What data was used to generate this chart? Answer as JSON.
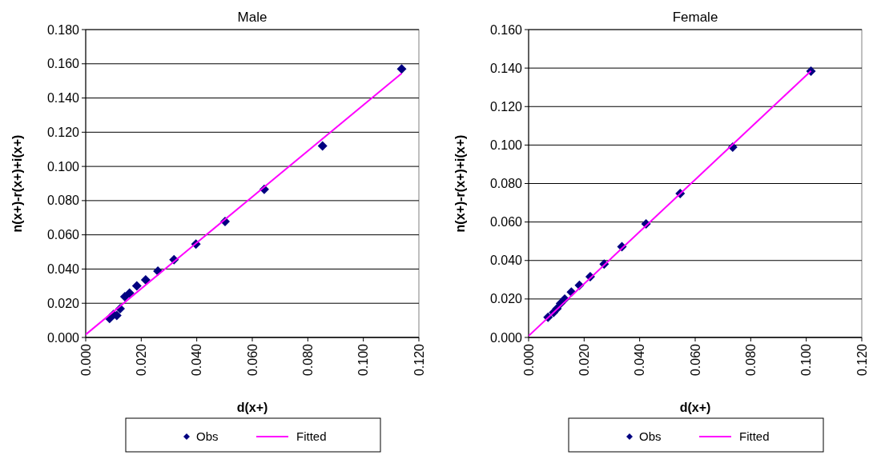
{
  "chart_data": [
    {
      "type": "scatter",
      "title": "Male",
      "xlabel": "d(x+)",
      "ylabel": "n(x+)-r(x+)+i(x+)",
      "xlim": [
        0,
        0.12
      ],
      "xticks": [
        {
          "value": 0,
          "label": "0.000"
        },
        {
          "value": 0.02,
          "label": "0.020"
        },
        {
          "value": 0.04,
          "label": "0.040"
        },
        {
          "value": 0.06,
          "label": "0.060"
        },
        {
          "value": 0.08,
          "label": "0.080"
        },
        {
          "value": 0.1,
          "label": "0.100"
        },
        {
          "value": 0.12,
          "label": "0.120"
        }
      ],
      "ylim": [
        0,
        0.18
      ],
      "yticks": [
        {
          "value": 0,
          "label": "0.000"
        },
        {
          "value": 0.02,
          "label": "0.020"
        },
        {
          "value": 0.04,
          "label": "0.040"
        },
        {
          "value": 0.06,
          "label": "0.060"
        },
        {
          "value": 0.08,
          "label": "0.080"
        },
        {
          "value": 0.1,
          "label": "0.100"
        },
        {
          "value": 0.12,
          "label": "0.120"
        },
        {
          "value": 0.14,
          "label": "0.140"
        },
        {
          "value": 0.16,
          "label": "0.160"
        },
        {
          "value": 0.18,
          "label": "0.180"
        }
      ],
      "grid": "y",
      "legend": "bottom",
      "series": [
        {
          "name": "Obs",
          "type": "scatter",
          "marker": "diamond",
          "color": "#000080",
          "x": [
            0.0086,
            0.01,
            0.0112,
            0.0124,
            0.0141,
            0.0158,
            0.0184,
            0.0216,
            0.026,
            0.0318,
            0.0397,
            0.0502,
            0.0643,
            0.0853,
            0.1138
          ],
          "values": [
            0.0111,
            0.0134,
            0.0129,
            0.0168,
            0.0238,
            0.0259,
            0.0301,
            0.0337,
            0.0388,
            0.0455,
            0.0546,
            0.0678,
            0.0866,
            0.112,
            0.157
          ]
        },
        {
          "name": "Fitted",
          "type": "line",
          "marker": "none",
          "color": "#ff00ff",
          "x": [
            0,
            0.1138
          ],
          "values": [
            0.0017,
            0.1544
          ]
        }
      ]
    },
    {
      "type": "scatter",
      "title": "Female",
      "xlabel": "d(x+)",
      "ylabel": "n(x+)-r(x+)+i(x+)",
      "xlim": [
        0,
        0.12
      ],
      "xticks": [
        {
          "value": 0,
          "label": "0.000"
        },
        {
          "value": 0.02,
          "label": "0.020"
        },
        {
          "value": 0.04,
          "label": "0.040"
        },
        {
          "value": 0.06,
          "label": "0.060"
        },
        {
          "value": 0.08,
          "label": "0.080"
        },
        {
          "value": 0.1,
          "label": "0.100"
        },
        {
          "value": 0.12,
          "label": "0.120"
        }
      ],
      "ylim": [
        0,
        0.16
      ],
      "yticks": [
        {
          "value": 0,
          "label": "0.000"
        },
        {
          "value": 0.02,
          "label": "0.020"
        },
        {
          "value": 0.04,
          "label": "0.040"
        },
        {
          "value": 0.06,
          "label": "0.060"
        },
        {
          "value": 0.08,
          "label": "0.080"
        },
        {
          "value": 0.1,
          "label": "0.100"
        },
        {
          "value": 0.12,
          "label": "0.120"
        },
        {
          "value": 0.14,
          "label": "0.140"
        },
        {
          "value": 0.16,
          "label": "0.160"
        }
      ],
      "grid": "y",
      "legend": "bottom",
      "series": [
        {
          "name": "Obs",
          "type": "scatter",
          "marker": "diamond",
          "color": "#000080",
          "x": [
            0.007,
            0.009,
            0.0102,
            0.0115,
            0.013,
            0.0154,
            0.0183,
            0.0222,
            0.0272,
            0.0336,
            0.0423,
            0.0546,
            0.0735,
            0.1017
          ],
          "values": [
            0.0105,
            0.013,
            0.015,
            0.0177,
            0.02,
            0.0236,
            0.0271,
            0.0316,
            0.0381,
            0.0472,
            0.059,
            0.0748,
            0.0989,
            0.1384
          ]
        },
        {
          "name": "Fitted",
          "type": "line",
          "marker": "none",
          "color": "#ff00ff",
          "x": [
            0,
            0.1017
          ],
          "values": [
            0.0008,
            0.1385
          ]
        }
      ]
    }
  ]
}
